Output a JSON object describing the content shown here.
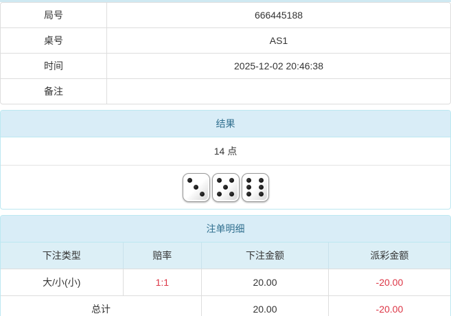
{
  "info_table": {
    "rows": [
      {
        "label": "局号",
        "value": "666445188"
      },
      {
        "label": "桌号",
        "value": "AS1"
      },
      {
        "label": "时间",
        "value": "2025-12-02 20:46:38"
      },
      {
        "label": "备注",
        "value": ""
      }
    ]
  },
  "result_panel": {
    "title": "结果",
    "points": "14 点",
    "dice": [
      3,
      5,
      6
    ]
  },
  "bets_panel": {
    "title": "注单明细",
    "columns": [
      "下注类型",
      "赔率",
      "下注金额",
      "派彩金额"
    ],
    "rows": [
      {
        "type": "大/小(小)",
        "odds": "1:1",
        "bet_amount": "20.00",
        "payout": "-20.00"
      }
    ],
    "total": {
      "label": "总计",
      "bet_amount": "20.00",
      "payout": "-20.00"
    }
  },
  "colors": {
    "panel_header_bg": "#d9edf7",
    "panel_header_text": "#31708f",
    "panel_border": "#bce8f1",
    "table_border": "#dddddd",
    "negative_text": "#dc3545",
    "body_text": "#333333"
  }
}
